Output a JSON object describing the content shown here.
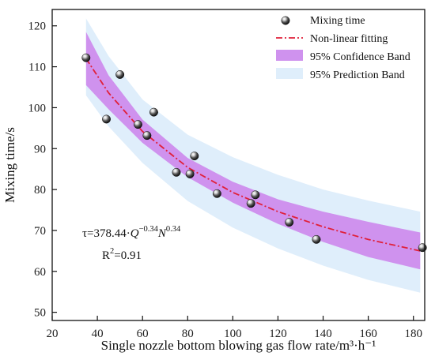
{
  "chart_data": {
    "type": "scatter",
    "title": "",
    "xlabel": "Single nozzle bottom blowing gas flow rate/m³·h⁻¹",
    "ylabel": "Mixing time/s",
    "xlim": [
      20,
      185
    ],
    "ylim": [
      48,
      124
    ],
    "x_ticks": [
      20,
      40,
      60,
      80,
      100,
      120,
      140,
      160,
      180
    ],
    "y_ticks": [
      50,
      60,
      70,
      80,
      90,
      100,
      110,
      120
    ],
    "legend_position": "top-right",
    "grid": false,
    "colors": {
      "scatter": "#111111",
      "fit": "#e0203a",
      "confidence_band": "#cf92ee",
      "prediction_band": "#dfeefb"
    },
    "series": [
      {
        "name": "Mixing time",
        "type": "scatter",
        "points": [
          {
            "x": 35,
            "y": 112.2
          },
          {
            "x": 44,
            "y": 97.2
          },
          {
            "x": 50,
            "y": 108.1
          },
          {
            "x": 58,
            "y": 95.9
          },
          {
            "x": 62,
            "y": 93.2
          },
          {
            "x": 65,
            "y": 98.9
          },
          {
            "x": 75,
            "y": 84.2
          },
          {
            "x": 81,
            "y": 83.8
          },
          {
            "x": 83,
            "y": 88.2
          },
          {
            "x": 93,
            "y": 79.0
          },
          {
            "x": 108,
            "y": 76.6
          },
          {
            "x": 110,
            "y": 78.7
          },
          {
            "x": 125,
            "y": 72.0
          },
          {
            "x": 137,
            "y": 67.8
          },
          {
            "x": 184,
            "y": 65.8
          }
        ]
      },
      {
        "name": "Non-linear fitting",
        "type": "line",
        "points": [
          {
            "x": 35,
            "y": 112
          },
          {
            "x": 45,
            "y": 103.6
          },
          {
            "x": 60,
            "y": 94.2
          },
          {
            "x": 80,
            "y": 85.4
          },
          {
            "x": 100,
            "y": 79.3
          },
          {
            "x": 120,
            "y": 74.6
          },
          {
            "x": 140,
            "y": 70.9
          },
          {
            "x": 160,
            "y": 67.8
          },
          {
            "x": 183,
            "y": 65
          }
        ]
      },
      {
        "name": "95% Confidence Band",
        "type": "area",
        "points": [
          {
            "x": 35,
            "y_low": 105.5,
            "y_high": 118.5
          },
          {
            "x": 45,
            "y_low": 99.6,
            "y_high": 107.9
          },
          {
            "x": 60,
            "y_low": 91.4,
            "y_high": 97.1
          },
          {
            "x": 80,
            "y_low": 83,
            "y_high": 87.7
          },
          {
            "x": 100,
            "y_low": 76.8,
            "y_high": 81.9
          },
          {
            "x": 120,
            "y_low": 71.6,
            "y_high": 77.6
          },
          {
            "x": 140,
            "y_low": 67.2,
            "y_high": 74.6
          },
          {
            "x": 160,
            "y_low": 63.5,
            "y_high": 72.1
          },
          {
            "x": 183,
            "y_low": 60.5,
            "y_high": 69.5
          }
        ]
      },
      {
        "name": "95% Prediction Band",
        "type": "area",
        "points": [
          {
            "x": 35,
            "y_low": 103,
            "y_high": 121.8
          },
          {
            "x": 45,
            "y_low": 95.4,
            "y_high": 112.6
          },
          {
            "x": 60,
            "y_low": 86.5,
            "y_high": 102
          },
          {
            "x": 80,
            "y_low": 77.2,
            "y_high": 93.4
          },
          {
            "x": 100,
            "y_low": 70.7,
            "y_high": 87.9
          },
          {
            "x": 120,
            "y_low": 65.6,
            "y_high": 83.6
          },
          {
            "x": 140,
            "y_low": 61.4,
            "y_high": 80
          },
          {
            "x": 160,
            "y_low": 57.9,
            "y_high": 77.3
          },
          {
            "x": 183,
            "y_low": 54.8,
            "y_high": 74.6
          }
        ]
      }
    ],
    "annotations": {
      "equation": {
        "tau_prefix": "τ=378.44·",
        "q_symbol": "Q",
        "q_exponent": "−0.34",
        "n_symbol": "N",
        "n_exponent": "0.34"
      },
      "r_squared": {
        "prefix": "R",
        "exponent": "2",
        "value": "=0.91"
      }
    }
  }
}
